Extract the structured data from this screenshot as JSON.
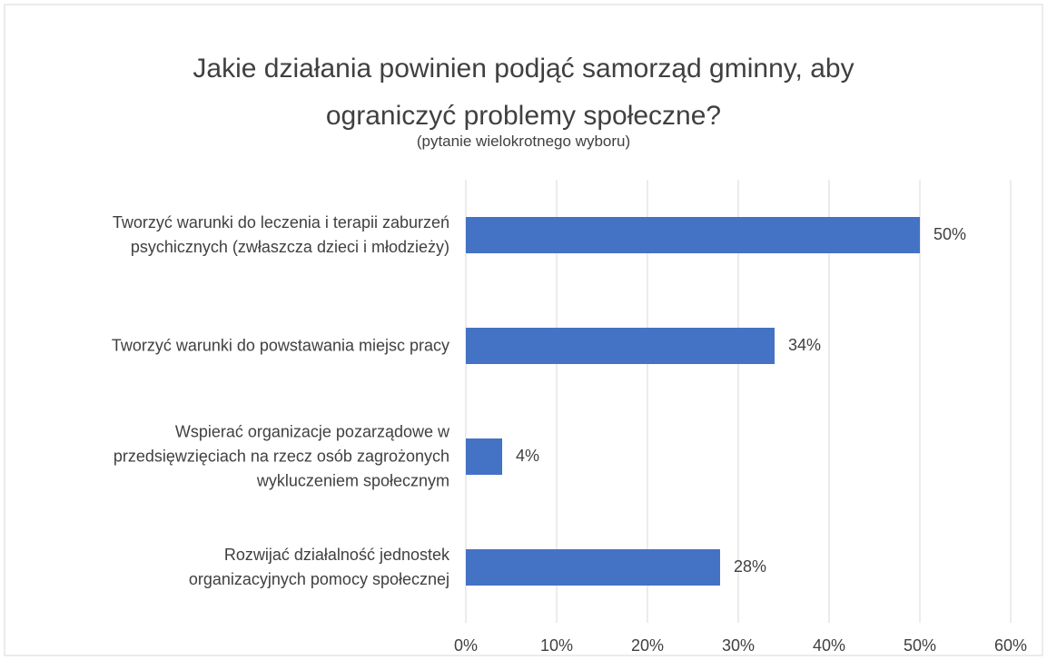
{
  "chart_data": {
    "type": "bar",
    "orientation": "horizontal",
    "title": "Jakie działania powinien podjąć samorząd gminny, aby\nograniczyć problemy społeczne?",
    "subtitle": "(pytanie wielokrotnego wyboru)",
    "categories": [
      "Tworzyć warunki do leczenia i terapii zaburzeń\npsychicznych (zwłaszcza dzieci i młodzieży)",
      "Tworzyć warunki do powstawania miejsc pracy",
      "Wspierać organizacje pozarządowe w\nprzedsięwzięciach na rzecz osób zagrożonych\nwykluczeniem społecznym",
      "Rozwijać działalność jednostek\norganizacyjnych pomocy społecznej"
    ],
    "values": [
      50,
      34,
      4,
      28
    ],
    "value_labels": [
      "50%",
      "34%",
      "4%",
      "28%"
    ],
    "color": "#4472c4",
    "xlim": [
      0,
      60
    ],
    "xticks": [
      {
        "value": 0,
        "label": "0%"
      },
      {
        "value": 10,
        "label": "10%"
      },
      {
        "value": 20,
        "label": "20%"
      },
      {
        "value": 30,
        "label": "30%"
      },
      {
        "value": 40,
        "label": "40%"
      },
      {
        "value": 50,
        "label": "50%"
      },
      {
        "value": 60,
        "label": "60%"
      }
    ],
    "grid": true
  }
}
